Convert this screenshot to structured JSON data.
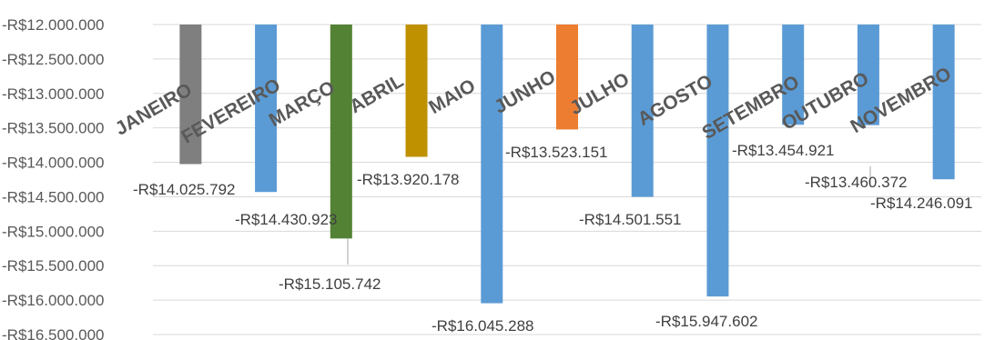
{
  "chart_data": {
    "type": "bar",
    "categories": [
      "JANEIRO",
      "FEVEREIRO",
      "MARÇO",
      "ABRIL",
      "MAIO",
      "JUNHO",
      "JULHO",
      "AGOSTO",
      "SETEMBRO",
      "OUTUBRO",
      "NOVEMBRO"
    ],
    "values": [
      -14025792,
      -14430923,
      -15105742,
      -13920178,
      -16045288,
      -13523151,
      -14501551,
      -15947602,
      -13454921,
      -13460372,
      -14246091
    ],
    "data_labels": [
      "-R$14.025.792",
      "-R$14.430.923",
      "-R$15.105.742",
      "-R$13.920.178",
      "-R$16.045.288",
      "-R$13.523.151",
      "-R$14.501.551",
      "-R$15.947.602",
      "-R$13.454.921",
      "-R$13.460.372",
      "-R$14.246.091"
    ],
    "bar_colors": [
      "#7f7f7f",
      "#5b9bd5",
      "#548235",
      "#bf9000",
      "#5b9bd5",
      "#ed7d31",
      "#5b9bd5",
      "#5b9bd5",
      "#5b9bd5",
      "#5b9bd5",
      "#5b9bd5"
    ],
    "y_ticks": [
      -12000000,
      -12500000,
      -13000000,
      -13500000,
      -14000000,
      -14500000,
      -15000000,
      -15500000,
      -16000000,
      -16500000
    ],
    "y_tick_labels": [
      "-R$12.000.000",
      "-R$12.500.000",
      "-R$13.000.000",
      "-R$13.500.000",
      "-R$14.000.000",
      "-R$14.500.000",
      "-R$15.000.000",
      "-R$15.500.000",
      "-R$16.000.000",
      "-R$16.500.000"
    ],
    "ylim": [
      -16500000,
      -12000000
    ],
    "grid": true,
    "title": "",
    "xlabel": "",
    "ylabel": ""
  }
}
